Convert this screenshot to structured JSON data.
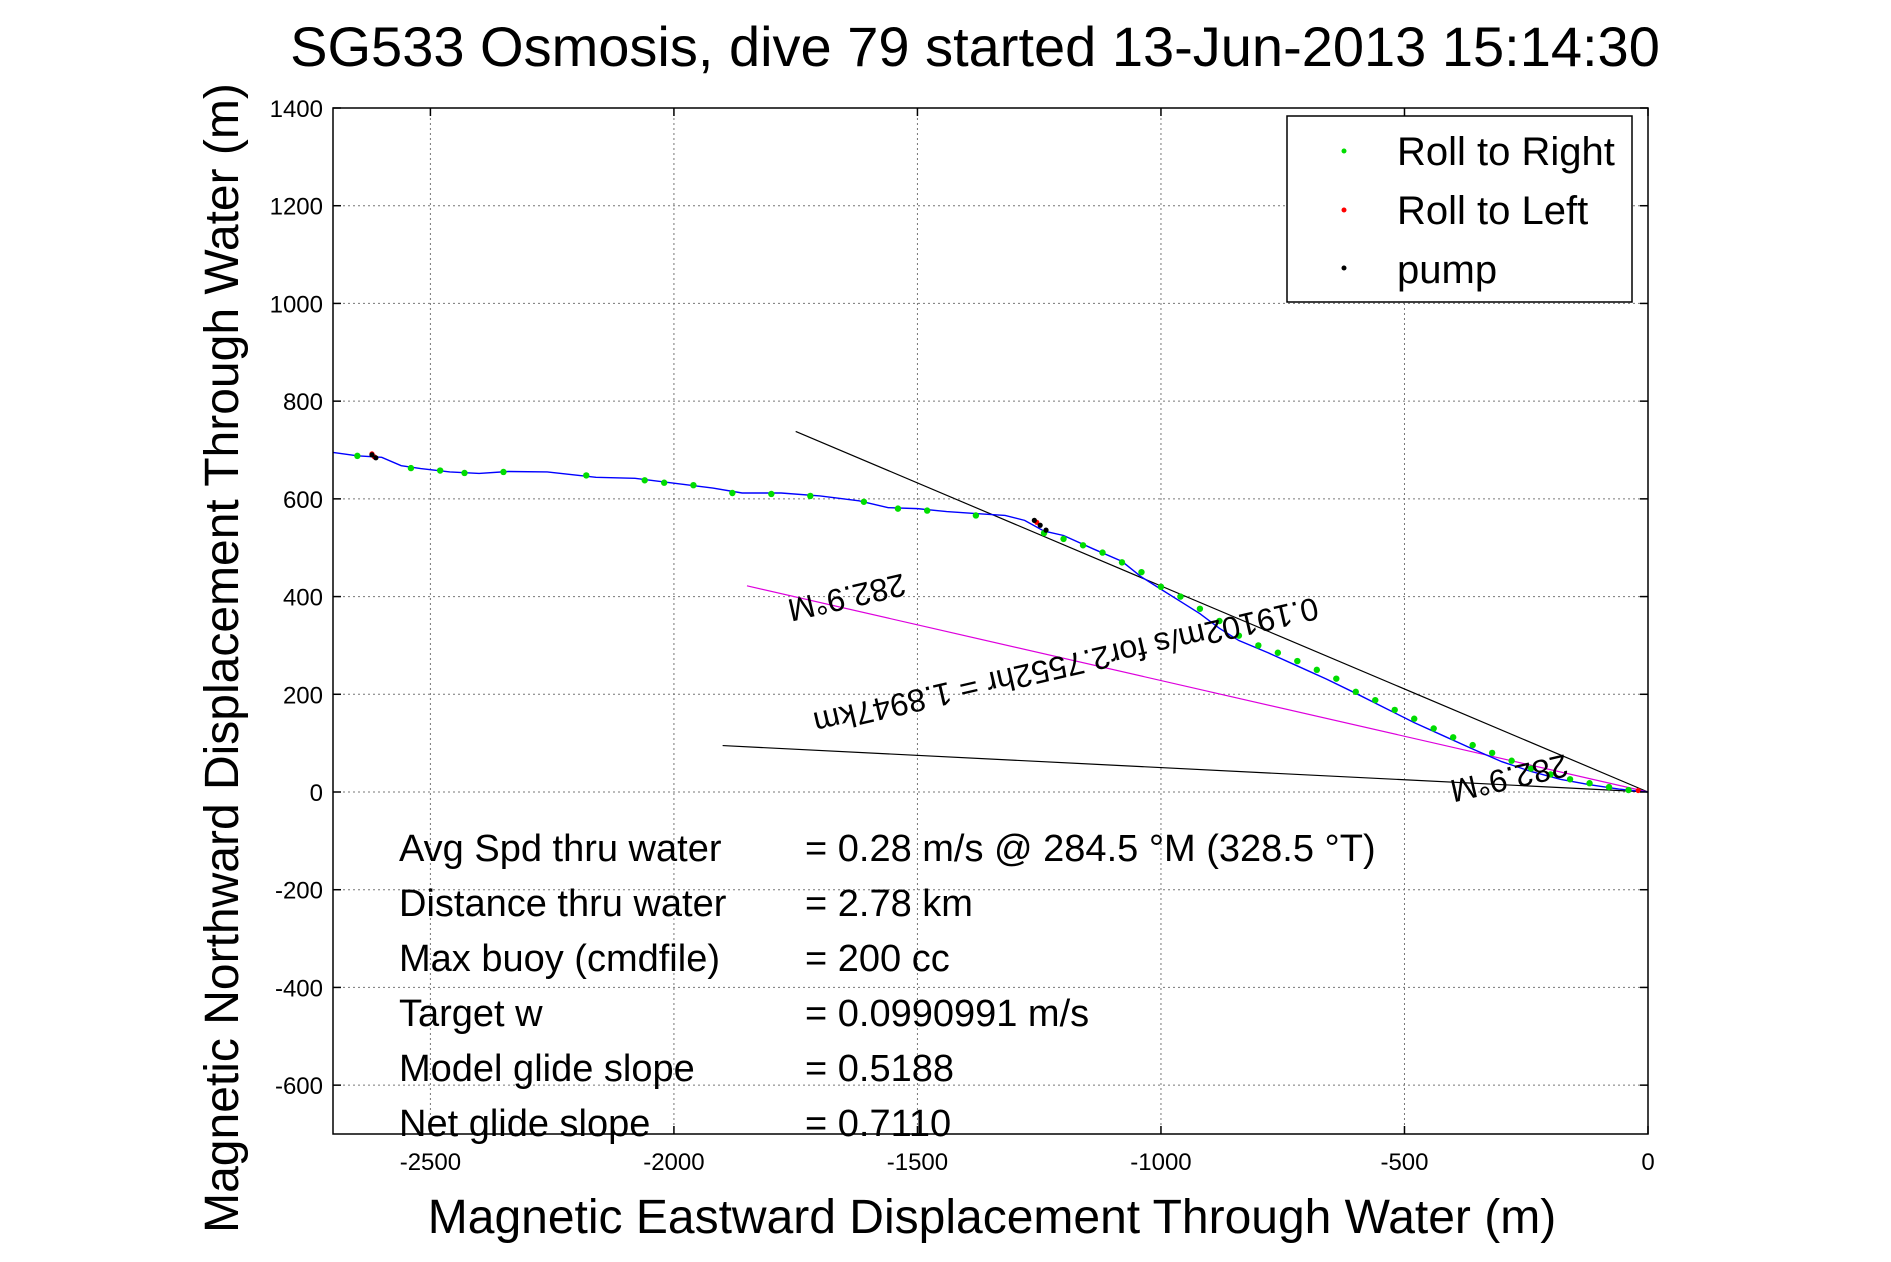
{
  "chart_data": {
    "type": "line",
    "title": "SG533 Osmosis, dive 79 started 13-Jun-2013 15:14:30",
    "xlabel": "Magnetic Eastward Displacement Through Water (m)",
    "ylabel": "Magnetic Northward Displacement Through Water (m)",
    "xlim": [
      -2700,
      0
    ],
    "ylim": [
      -700,
      1400
    ],
    "xticks": [
      -2500,
      -2000,
      -1500,
      -1000,
      -500,
      0
    ],
    "yticks": [
      -600,
      -400,
      -200,
      0,
      200,
      400,
      600,
      800,
      1000,
      1200,
      1400
    ],
    "grid": true,
    "legend_position": "top-right",
    "legend": [
      {
        "label": "Roll to Right",
        "color": "#00dd00"
      },
      {
        "label": "Roll to Left",
        "color": "#ff0000"
      },
      {
        "label": "pump",
        "color": "#000000"
      }
    ],
    "colors": {
      "track": "#0000ff",
      "rollRight": "#00dd00",
      "rollLeft": "#ff0000",
      "pump": "#000000",
      "course": "#dd00dd",
      "bound": "#000000"
    },
    "series": [
      {
        "role": "track",
        "x": [
          -2700,
          -2650,
          -2600,
          -2560,
          -2520,
          -2460,
          -2400,
          -2340,
          -2260,
          -2160,
          -2080,
          -2000,
          -1920,
          -1860,
          -1780,
          -1700,
          -1620,
          -1560,
          -1500,
          -1440,
          -1380,
          -1320,
          -1280,
          -1240,
          -1200,
          -1140,
          -1080,
          -1040,
          -1000,
          -960,
          -920,
          -880,
          -840,
          -780,
          -720,
          -660,
          -600,
          -540,
          -480,
          -420,
          -360,
          -300,
          -240,
          -180,
          -120,
          -60,
          -20,
          0
        ],
        "y": [
          695,
          688,
          685,
          668,
          662,
          655,
          652,
          656,
          655,
          644,
          642,
          632,
          622,
          612,
          612,
          606,
          596,
          582,
          580,
          574,
          570,
          566,
          556,
          534,
          525,
          498,
          472,
          440,
          415,
          390,
          365,
          335,
          310,
          285,
          258,
          231,
          202,
          172,
          142,
          115,
          88,
          62,
          42,
          26,
          15,
          6,
          2,
          0
        ]
      },
      {
        "role": "rollRight",
        "x": [
          -2650,
          -2540,
          -2480,
          -2430,
          -2350,
          -2180,
          -2060,
          -2020,
          -1960,
          -1880,
          -1800,
          -1720,
          -1610,
          -1540,
          -1480,
          -1380,
          -1240,
          -1200,
          -1160,
          -1120,
          -1080,
          -1040,
          -1000,
          -960,
          -920,
          -880,
          -840,
          -800,
          -760,
          -720,
          -680,
          -640,
          -600,
          -560,
          -520,
          -480,
          -440,
          -400,
          -360,
          -320,
          -280,
          -240,
          -200,
          -160,
          -120,
          -80,
          -40
        ],
        "y": [
          688,
          663,
          658,
          653,
          655,
          648,
          638,
          633,
          628,
          612,
          610,
          606,
          594,
          580,
          576,
          566,
          530,
          518,
          505,
          490,
          470,
          450,
          420,
          400,
          375,
          350,
          320,
          300,
          285,
          268,
          250,
          232,
          205,
          188,
          168,
          150,
          130,
          112,
          96,
          80,
          64,
          48,
          36,
          26,
          18,
          10,
          4
        ]
      },
      {
        "role": "rollLeft",
        "x": [
          -2620,
          -2615,
          -1255,
          -20
        ],
        "y": [
          692,
          686,
          552,
          3
        ]
      },
      {
        "role": "pump",
        "x": [
          -2620,
          -2612,
          -1260,
          -1248,
          -1236
        ],
        "y": [
          690,
          684,
          556,
          546,
          536
        ]
      }
    ],
    "lines": [
      {
        "role": "bound",
        "x": [
          -1750,
          0
        ],
        "y": [
          738,
          0
        ]
      },
      {
        "role": "course",
        "x": [
          -1850,
          0
        ],
        "y": [
          422,
          0
        ]
      },
      {
        "role": "bound",
        "x": [
          -1900,
          0
        ],
        "y": [
          95,
          0
        ]
      }
    ],
    "annotations": [
      {
        "text": "282.9°M",
        "x": -1650,
        "y": 420
      },
      {
        "text": "0.19102m/s for2.7552hr = 1.8947km",
        "x": -1200,
        "y": 280
      },
      {
        "text": "282.9°M",
        "x": -290,
        "y": 50
      }
    ]
  },
  "stats": [
    {
      "label": "Avg Spd thru water",
      "value": "=  0.28 m/s @ 284.5 °M (328.5 °T)"
    },
    {
      "label": "Distance thru water",
      "value": "=  2.78 km"
    },
    {
      "label": "Max buoy (cmdfile)",
      "value": "= 200 cc"
    },
    {
      "label": "Target w",
      "value": "= 0.0990991 m/s"
    },
    {
      "label": "Model glide slope",
      "value": "= 0.5188"
    },
    {
      "label": "Net glide slope",
      "value": "= 0.7110"
    }
  ]
}
